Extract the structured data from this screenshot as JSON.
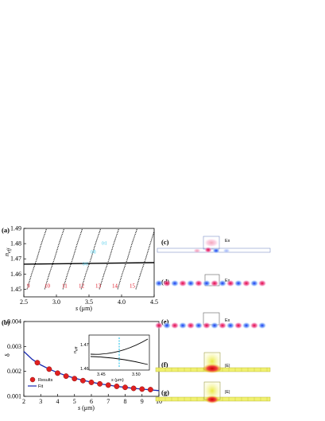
{
  "panel_a": {
    "label": "(a)",
    "y_label_main": "n",
    "y_label_sub": "eff",
    "x_label_var": "s",
    "x_label_unit": " (μm)",
    "y_ticks": [
      "1.49",
      "1.48",
      "1.47",
      "1.46",
      "1.45"
    ],
    "x_ticks": [
      "2.5",
      "3.0",
      "3.5",
      "4.0",
      "4.5"
    ],
    "mode_numbers": [
      "9",
      "10",
      "11",
      "12",
      "13",
      "14",
      "15"
    ],
    "marker_labels": [
      "(c)",
      "(d)",
      "(e)"
    ]
  },
  "panel_b": {
    "label": "(b)",
    "y_label": "δ",
    "x_label_var": "s",
    "x_label_unit": " (μm)",
    "y_ticks": [
      "0.004",
      "0.003",
      "0.002",
      "0.001"
    ],
    "x_ticks": [
      "2",
      "3",
      "4",
      "5",
      "6",
      "7",
      "8",
      "9",
      "10"
    ],
    "legend_results": "Results",
    "legend_fit": "Fit",
    "inset": {
      "y_label_main": "n",
      "y_label_sub": "eff",
      "y_ticks": [
        "1.47",
        "1.46"
      ],
      "x_ticks": [
        "3.45",
        "3.50"
      ],
      "x_label_var": "s",
      "x_label_unit": " (μm)"
    }
  },
  "chart_data": [
    {
      "type": "scatter",
      "title": "",
      "xlabel": "s (μm)",
      "ylabel": "neff",
      "xlim": [
        2.5,
        4.5
      ],
      "ylim": [
        1.445,
        1.49
      ],
      "series": [
        {
          "values": [
            [
              2.55,
              1.45
            ],
            [
              2.62,
              1.46
            ],
            [
              2.7,
              1.47
            ],
            [
              2.77,
              1.48
            ],
            [
              2.85,
              1.49
            ]
          ]
        },
        {
          "values": [
            [
              2.82,
              1.45
            ],
            [
              2.89,
              1.46
            ],
            [
              2.97,
              1.47
            ],
            [
              3.04,
              1.48
            ],
            [
              3.12,
              1.49
            ]
          ]
        },
        {
          "values": [
            [
              3.1,
              1.45
            ],
            [
              3.17,
              1.46
            ],
            [
              3.25,
              1.47
            ],
            [
              3.32,
              1.48
            ],
            [
              3.4,
              1.49
            ]
          ]
        },
        {
          "values": [
            [
              3.38,
              1.45
            ],
            [
              3.45,
              1.46
            ],
            [
              3.53,
              1.47
            ],
            [
              3.6,
              1.48
            ],
            [
              3.68,
              1.49
            ]
          ]
        },
        {
          "values": [
            [
              3.66,
              1.45
            ],
            [
              3.73,
              1.46
            ],
            [
              3.81,
              1.47
            ],
            [
              3.88,
              1.48
            ],
            [
              3.96,
              1.49
            ]
          ]
        },
        {
          "values": [
            [
              3.94,
              1.45
            ],
            [
              4.01,
              1.46
            ],
            [
              4.09,
              1.47
            ],
            [
              4.16,
              1.48
            ],
            [
              4.24,
              1.49
            ]
          ]
        },
        {
          "values": [
            [
              4.22,
              1.45
            ],
            [
              4.29,
              1.46
            ],
            [
              4.37,
              1.47
            ],
            [
              4.44,
              1.48
            ],
            [
              4.5,
              1.488
            ]
          ]
        },
        {
          "values": [
            [
              2.5,
              1.4665
            ],
            [
              4.5,
              1.4675
            ]
          ]
        }
      ]
    },
    {
      "type": "line",
      "title": "",
      "xlabel": "s (μm)",
      "ylabel": "δ",
      "xlim": [
        2,
        10
      ],
      "ylim": [
        0.001,
        0.004
      ],
      "series": [
        {
          "name": "Results",
          "x": [
            2.8,
            3.5,
            4.0,
            4.5,
            5.0,
            5.5,
            6.0,
            6.5,
            7.0,
            7.5,
            8.0,
            8.5,
            9.0,
            9.5
          ],
          "values": [
            0.00235,
            0.00209,
            0.00193,
            0.00181,
            0.00171,
            0.00163,
            0.00156,
            0.0015,
            0.00145,
            0.0014,
            0.00136,
            0.00132,
            0.00129,
            0.00127
          ]
        },
        {
          "name": "Fit",
          "x": [
            2.0,
            2.5,
            3.0,
            3.5,
            4.0,
            4.5,
            5.0,
            5.5,
            6.0,
            6.5,
            7.0,
            7.5,
            8.0,
            8.5,
            9.0,
            9.5,
            10.0
          ],
          "values": [
            0.0028,
            0.00248,
            0.00226,
            0.00209,
            0.00195,
            0.00183,
            0.00173,
            0.00164,
            0.00157,
            0.0015,
            0.00145,
            0.0014,
            0.00136,
            0.00132,
            0.00129,
            0.00126,
            0.00123
          ]
        }
      ]
    }
  ],
  "field_panels": [
    {
      "label": "(c)",
      "field": "Ex"
    },
    {
      "label": "(d)",
      "field": "Ex"
    },
    {
      "label": "(e)",
      "field": "Ex"
    },
    {
      "label": "(f)",
      "field": "|E|"
    },
    {
      "label": "(g)",
      "field": "|E|"
    }
  ]
}
